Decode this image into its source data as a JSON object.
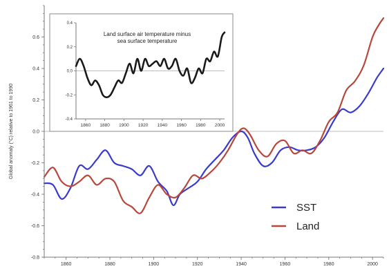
{
  "colors": {
    "sst": "#3a3acd",
    "land": "#b8473a",
    "inset_line": "#1a1a1a",
    "zero_line": "#bdbdbd"
  },
  "chart_data": [
    {
      "type": "line",
      "title": "",
      "xlabel": "",
      "ylabel": "Global anomaly (°C) relative to 1961 to 1990",
      "xlim": [
        1850,
        2005
      ],
      "ylim": [
        -0.8,
        0.8
      ],
      "x_ticks": [
        "1860",
        "1880",
        "1900",
        "1920",
        "1940",
        "1960",
        "1980",
        "2000"
      ],
      "y_ticks": [
        "0.6",
        "0.4",
        "0.2",
        "0.0",
        "-0.2",
        "-0.4",
        "-0.6",
        "-0.8"
      ],
      "legend": {
        "position": "bottom-right",
        "entries": [
          "SST",
          "Land"
        ]
      },
      "series": [
        {
          "name": "SST",
          "color": "#3a3acd",
          "x": [
            1850,
            1854,
            1858,
            1862,
            1866,
            1870,
            1874,
            1878,
            1882,
            1886,
            1890,
            1894,
            1898,
            1902,
            1906,
            1909,
            1912,
            1916,
            1920,
            1924,
            1928,
            1932,
            1936,
            1940,
            1943,
            1946,
            1950,
            1954,
            1958,
            1962,
            1966,
            1970,
            1974,
            1978,
            1982,
            1986,
            1990,
            1994,
            1998,
            2002,
            2005
          ],
          "y": [
            -0.33,
            -0.34,
            -0.43,
            -0.36,
            -0.22,
            -0.24,
            -0.18,
            -0.12,
            -0.2,
            -0.22,
            -0.24,
            -0.28,
            -0.22,
            -0.32,
            -0.38,
            -0.47,
            -0.4,
            -0.36,
            -0.32,
            -0.24,
            -0.18,
            -0.12,
            -0.04,
            0.0,
            -0.04,
            -0.14,
            -0.22,
            -0.2,
            -0.12,
            -0.1,
            -0.12,
            -0.12,
            -0.1,
            -0.04,
            0.06,
            0.14,
            0.12,
            0.16,
            0.24,
            0.34,
            0.4
          ]
        },
        {
          "name": "Land",
          "color": "#b8473a",
          "x": [
            1850,
            1854,
            1858,
            1862,
            1866,
            1870,
            1874,
            1878,
            1882,
            1886,
            1890,
            1894,
            1898,
            1902,
            1906,
            1910,
            1914,
            1918,
            1922,
            1926,
            1930,
            1934,
            1938,
            1941,
            1944,
            1948,
            1952,
            1956,
            1960,
            1964,
            1968,
            1972,
            1976,
            1980,
            1984,
            1988,
            1992,
            1996,
            2000,
            2003,
            2005
          ],
          "y": [
            -0.29,
            -0.23,
            -0.32,
            -0.35,
            -0.32,
            -0.28,
            -0.34,
            -0.3,
            -0.32,
            -0.44,
            -0.48,
            -0.52,
            -0.42,
            -0.34,
            -0.4,
            -0.42,
            -0.36,
            -0.28,
            -0.3,
            -0.26,
            -0.2,
            -0.12,
            -0.02,
            0.02,
            -0.02,
            -0.12,
            -0.16,
            -0.08,
            -0.06,
            -0.14,
            -0.12,
            -0.14,
            -0.06,
            0.06,
            0.12,
            0.26,
            0.32,
            0.42,
            0.6,
            0.68,
            0.72
          ]
        }
      ]
    },
    {
      "type": "line",
      "title": "Land surface air temperature minus sea surface temperature",
      "xlabel": "",
      "ylabel": "",
      "xlim": [
        1850,
        2005
      ],
      "ylim": [
        -0.4,
        0.4
      ],
      "x_ticks": [
        "1860",
        "1880",
        "1900",
        "1920",
        "1940",
        "1960",
        "1980",
        "2000"
      ],
      "y_ticks": [
        "0.4",
        "0.2",
        "0.0",
        "-0.2",
        "-0.4"
      ],
      "series": [
        {
          "color": "#1a1a1a",
          "x": [
            1850,
            1854,
            1858,
            1862,
            1866,
            1870,
            1874,
            1878,
            1882,
            1886,
            1890,
            1894,
            1898,
            1902,
            1906,
            1910,
            1914,
            1918,
            1922,
            1926,
            1930,
            1934,
            1938,
            1942,
            1946,
            1950,
            1954,
            1958,
            1962,
            1966,
            1970,
            1974,
            1978,
            1982,
            1986,
            1990,
            1994,
            1998,
            2002,
            2005
          ],
          "y": [
            0.04,
            0.1,
            0.04,
            -0.06,
            -0.12,
            -0.08,
            -0.12,
            -0.2,
            -0.22,
            -0.2,
            -0.14,
            -0.08,
            -0.1,
            -0.02,
            0.06,
            -0.02,
            0.1,
            0.0,
            0.1,
            0.04,
            0.06,
            0.08,
            0.04,
            0.1,
            0.02,
            0.04,
            0.1,
            0.0,
            -0.04,
            0.02,
            -0.1,
            -0.06,
            0.02,
            -0.02,
            0.1,
            0.08,
            0.16,
            0.12,
            0.28,
            0.32
          ]
        }
      ]
    }
  ]
}
